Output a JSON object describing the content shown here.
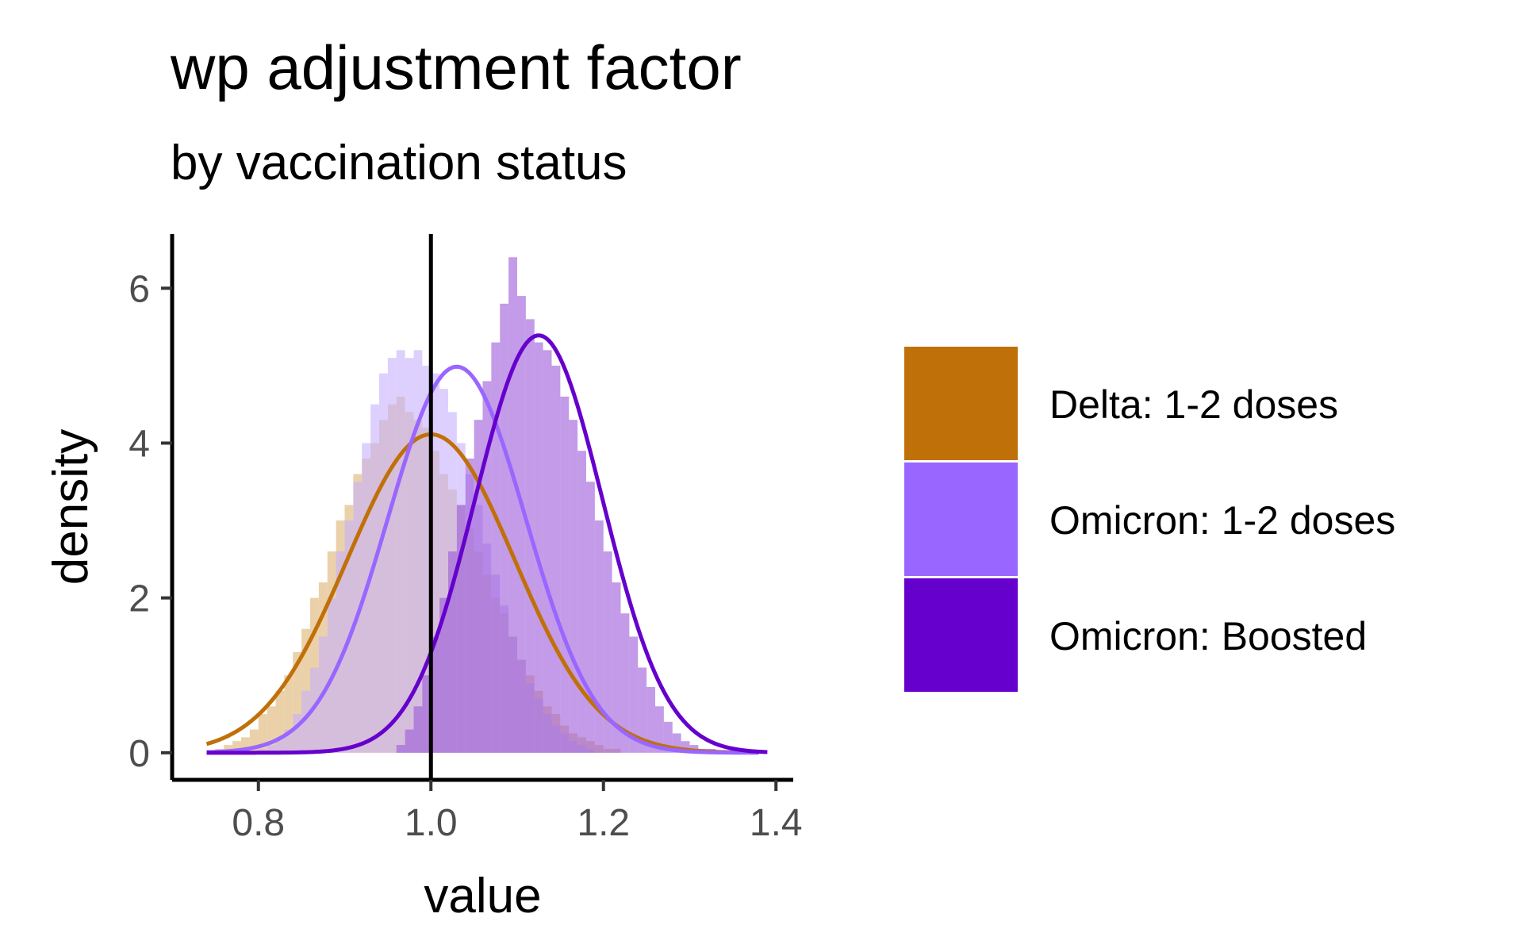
{
  "chart_data": {
    "type": "histogram+density",
    "title": "wp adjustment factor",
    "subtitle": "by vaccination status",
    "xlabel": "value",
    "ylabel": "density",
    "xlim": [
      0.7,
      1.42
    ],
    "ylim": [
      -0.35,
      6.7
    ],
    "x_ticks": [
      {
        "value": 0.8,
        "label": "0.8"
      },
      {
        "value": 1.0,
        "label": "1.0"
      },
      {
        "value": 1.2,
        "label": "1.2"
      },
      {
        "value": 1.4,
        "label": "1.4"
      }
    ],
    "y_ticks": [
      {
        "value": 0,
        "label": "0"
      },
      {
        "value": 2,
        "label": "2"
      },
      {
        "value": 4,
        "label": "4"
      },
      {
        "value": 6,
        "label": "6"
      }
    ],
    "reference_line": {
      "x": 1.0
    },
    "legend_placement": "right",
    "series": [
      {
        "name": "Delta: 1-2 doses",
        "color": "#C07008",
        "fill": "#DDB26F",
        "fill_opacity": 0.6,
        "density": {
          "mean": 1.0,
          "sd": 0.097,
          "x_range": [
            0.74,
            1.38
          ]
        },
        "bin_width": 0.01,
        "bin_start": 0.74,
        "hist_heights": [
          0.0,
          0.05,
          0.1,
          0.15,
          0.2,
          0.3,
          0.5,
          0.6,
          0.8,
          1.0,
          1.3,
          1.6,
          2.0,
          2.2,
          2.6,
          3.0,
          3.2,
          3.6,
          3.8,
          4.0,
          4.3,
          4.5,
          4.6,
          4.4,
          4.3,
          4.2,
          3.9,
          3.6,
          3.4,
          3.2,
          2.9,
          2.6,
          2.3,
          2.0,
          1.8,
          1.5,
          1.2,
          1.0,
          0.8,
          0.6,
          0.5,
          0.35,
          0.25,
          0.2,
          0.15,
          0.1,
          0.05,
          0.05,
          0.0
        ]
      },
      {
        "name": "Omicron: 1-2 doses",
        "color": "#9966FF",
        "fill": "#C6B0FF",
        "fill_opacity": 0.6,
        "density": {
          "mean": 1.03,
          "sd": 0.08,
          "x_range": [
            0.74,
            1.38
          ]
        },
        "bin_width": 0.01,
        "bin_start": 0.79,
        "hist_heights": [
          0.0,
          0.05,
          0.1,
          0.2,
          0.3,
          0.5,
          0.8,
          1.1,
          1.5,
          2.0,
          2.6,
          3.0,
          3.5,
          4.0,
          4.5,
          4.9,
          5.1,
          5.2,
          5.1,
          5.2,
          5.0,
          4.9,
          4.7,
          4.4,
          4.0,
          3.6,
          3.2,
          2.7,
          2.3,
          1.9,
          1.5,
          1.2,
          0.9,
          0.7,
          0.5,
          0.35,
          0.25,
          0.15,
          0.1,
          0.05,
          0.0
        ]
      },
      {
        "name": "Omicron: Boosted",
        "color": "#6600CC",
        "fill": "#9B59D9",
        "fill_opacity": 0.6,
        "density": {
          "mean": 1.125,
          "sd": 0.074,
          "x_range": [
            0.74,
            1.39
          ]
        },
        "bin_width": 0.01,
        "bin_start": 0.96,
        "hist_heights": [
          0.1,
          0.3,
          0.6,
          1.0,
          1.5,
          2.0,
          2.6,
          3.2,
          3.8,
          4.3,
          4.8,
          5.3,
          5.8,
          6.4,
          5.9,
          5.6,
          5.3,
          5.2,
          5.0,
          4.6,
          4.3,
          3.9,
          3.5,
          3.0,
          2.6,
          2.2,
          1.8,
          1.5,
          1.1,
          0.85,
          0.6,
          0.4,
          0.25,
          0.15,
          0.1,
          0.05,
          0.05,
          0.0
        ]
      }
    ]
  }
}
